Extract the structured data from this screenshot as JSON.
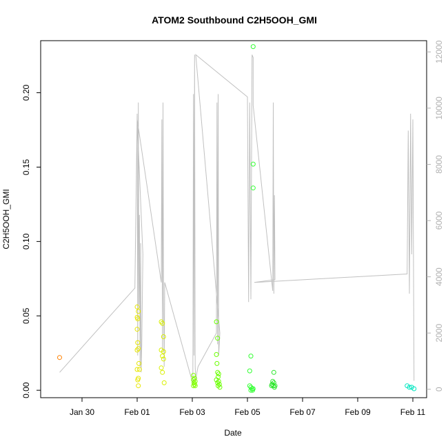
{
  "chart_data": {
    "type": "scatter",
    "title": "ATOM2 Southbound C2H5OOH_GMI",
    "xlabel": "Date",
    "ylabel": "C2H5OOH_GMI",
    "x_ticks": [
      "Jan 30",
      "Feb 01",
      "Feb 03",
      "Feb 05",
      "Feb 07",
      "Feb 09",
      "Feb 11"
    ],
    "xlim": [
      "2017-01-28T12:00",
      "2017-02-11T12:00"
    ],
    "ylim": [
      -0.005,
      0.235
    ],
    "y_ticks": [
      0.0,
      0.05,
      0.1,
      0.15,
      0.2
    ],
    "y_tick_labels": [
      "0.00",
      "0.05",
      "0.10",
      "0.15",
      "0.20"
    ],
    "y2lim": [
      -300,
      12400
    ],
    "y2_ticks": [
      0,
      2000,
      4000,
      6000,
      8000,
      10000,
      12000
    ],
    "y2_tick_labels": [
      "0",
      "2000",
      "4000",
      "6000",
      "8000",
      "10000",
      "12000"
    ],
    "grid": false,
    "points": [
      {
        "x": "2017-01-29T04:30",
        "y": 0.022,
        "color": "#ff8000"
      },
      {
        "x": "2017-02-01T00:00",
        "y": 0.056,
        "color": "#e6e600"
      },
      {
        "x": "2017-02-01T01:00",
        "y": 0.053,
        "color": "#e6e600"
      },
      {
        "x": "2017-02-01T00:00",
        "y": 0.049,
        "color": "#e6e600"
      },
      {
        "x": "2017-02-01T00:30",
        "y": 0.048,
        "color": "#e6e600"
      },
      {
        "x": "2017-02-01T00:00",
        "y": 0.041,
        "color": "#e6e600"
      },
      {
        "x": "2017-02-01T00:30",
        "y": 0.032,
        "color": "#e6e600"
      },
      {
        "x": "2017-02-01T01:00",
        "y": 0.028,
        "color": "#e6e600"
      },
      {
        "x": "2017-02-01T00:00",
        "y": 0.027,
        "color": "#e6e600"
      },
      {
        "x": "2017-02-01T01:30",
        "y": 0.018,
        "color": "#e6e600"
      },
      {
        "x": "2017-02-01T00:00",
        "y": 0.014,
        "color": "#e6e600"
      },
      {
        "x": "2017-02-01T02:00",
        "y": 0.014,
        "color": "#e6e600"
      },
      {
        "x": "2017-02-01T01:00",
        "y": 0.008,
        "color": "#e6e600"
      },
      {
        "x": "2017-02-01T00:30",
        "y": 0.007,
        "color": "#e6e600"
      },
      {
        "x": "2017-02-01T01:00",
        "y": 0.003,
        "color": "#e6e600"
      },
      {
        "x": "2017-02-01T21:00",
        "y": 0.046,
        "color": "#d9f000"
      },
      {
        "x": "2017-02-01T22:00",
        "y": 0.045,
        "color": "#d9f000"
      },
      {
        "x": "2017-02-01T21:00",
        "y": 0.027,
        "color": "#d9f000"
      },
      {
        "x": "2017-02-01T23:00",
        "y": 0.026,
        "color": "#d9f000"
      },
      {
        "x": "2017-02-01T22:00",
        "y": 0.023,
        "color": "#d9f000"
      },
      {
        "x": "2017-02-01T23:00",
        "y": 0.021,
        "color": "#d9f000"
      },
      {
        "x": "2017-02-01T21:00",
        "y": 0.015,
        "color": "#d9f000"
      },
      {
        "x": "2017-02-01T22:00",
        "y": 0.012,
        "color": "#d9f000"
      },
      {
        "x": "2017-02-01T23:30",
        "y": 0.005,
        "color": "#d9f000"
      },
      {
        "x": "2017-02-01T23:00",
        "y": 0.036,
        "color": "#d9f000"
      },
      {
        "x": "2017-02-03T01:00",
        "y": 0.01,
        "color": "#80ff00"
      },
      {
        "x": "2017-02-03T02:00",
        "y": 0.008,
        "color": "#80ff00"
      },
      {
        "x": "2017-02-03T01:00",
        "y": 0.007,
        "color": "#80ff00"
      },
      {
        "x": "2017-02-03T02:30",
        "y": 0.006,
        "color": "#80ff00"
      },
      {
        "x": "2017-02-03T01:30",
        "y": 0.005,
        "color": "#80ff00"
      },
      {
        "x": "2017-02-03T02:00",
        "y": 0.004,
        "color": "#80ff00"
      },
      {
        "x": "2017-02-03T01:00",
        "y": 0.003,
        "color": "#80ff00"
      },
      {
        "x": "2017-02-03T02:30",
        "y": 0.003,
        "color": "#80ff00"
      },
      {
        "x": "2017-02-03T21:00",
        "y": 0.046,
        "color": "#6aff00"
      },
      {
        "x": "2017-02-03T22:00",
        "y": 0.035,
        "color": "#6aff00"
      },
      {
        "x": "2017-02-03T21:00",
        "y": 0.024,
        "color": "#6aff00"
      },
      {
        "x": "2017-02-03T21:30",
        "y": 0.018,
        "color": "#6aff00"
      },
      {
        "x": "2017-02-03T22:00",
        "y": 0.012,
        "color": "#6aff00"
      },
      {
        "x": "2017-02-03T23:00",
        "y": 0.011,
        "color": "#6aff00"
      },
      {
        "x": "2017-02-03T22:30",
        "y": 0.009,
        "color": "#6aff00"
      },
      {
        "x": "2017-02-03T21:00",
        "y": 0.007,
        "color": "#6aff00"
      },
      {
        "x": "2017-02-03T23:00",
        "y": 0.006,
        "color": "#6aff00"
      },
      {
        "x": "2017-02-03T22:00",
        "y": 0.005,
        "color": "#6aff00"
      },
      {
        "x": "2017-02-03T23:30",
        "y": 0.004,
        "color": "#6aff00"
      },
      {
        "x": "2017-02-03T22:30",
        "y": 0.003,
        "color": "#6aff00"
      },
      {
        "x": "2017-02-04T00:00",
        "y": 0.002,
        "color": "#6aff00"
      },
      {
        "x": "2017-02-05T05:00",
        "y": 0.231,
        "color": "#33ff33"
      },
      {
        "x": "2017-02-05T05:00",
        "y": 0.152,
        "color": "#33ff33"
      },
      {
        "x": "2017-02-05T05:00",
        "y": 0.136,
        "color": "#33ff33"
      },
      {
        "x": "2017-02-05T03:00",
        "y": 0.023,
        "color": "#33ff33"
      },
      {
        "x": "2017-02-05T02:00",
        "y": 0.013,
        "color": "#33ff33"
      },
      {
        "x": "2017-02-05T02:00",
        "y": 0.003,
        "color": "#33ff33"
      },
      {
        "x": "2017-02-05T03:00",
        "y": 0.002,
        "color": "#33ff33"
      },
      {
        "x": "2017-02-05T04:00",
        "y": 0.001,
        "color": "#33ff33"
      },
      {
        "x": "2017-02-05T05:00",
        "y": 0.001,
        "color": "#33ff33"
      },
      {
        "x": "2017-02-05T03:00",
        "y": 0.0,
        "color": "#33ff33"
      },
      {
        "x": "2017-02-05T04:30",
        "y": 0.0,
        "color": "#33ff33"
      },
      {
        "x": "2017-02-05T23:00",
        "y": 0.012,
        "color": "#2ae62a"
      },
      {
        "x": "2017-02-05T22:00",
        "y": 0.006,
        "color": "#2ae62a"
      },
      {
        "x": "2017-02-05T23:00",
        "y": 0.005,
        "color": "#2ae62a"
      },
      {
        "x": "2017-02-05T21:30",
        "y": 0.004,
        "color": "#2ae62a"
      },
      {
        "x": "2017-02-05T22:30",
        "y": 0.003,
        "color": "#2ae62a"
      },
      {
        "x": "2017-02-06T00:00",
        "y": 0.003,
        "color": "#2ae62a"
      },
      {
        "x": "2017-02-05T21:00",
        "y": 0.003,
        "color": "#2ae62a"
      },
      {
        "x": "2017-02-05T23:30",
        "y": 0.002,
        "color": "#2ae62a"
      },
      {
        "x": "2017-02-10T19:00",
        "y": 0.003,
        "color": "#00e6c0"
      },
      {
        "x": "2017-02-10T21:00",
        "y": 0.002,
        "color": "#00e6c0"
      },
      {
        "x": "2017-02-10T23:00",
        "y": 0.002,
        "color": "#00e6c0"
      },
      {
        "x": "2017-02-11T01:00",
        "y": 0.001,
        "color": "#00e6c0"
      }
    ],
    "altitude_series": {
      "color": "#c0c0c0",
      "x": [
        "2017-01-29T04:30",
        "2017-01-31T22:00",
        "2017-02-01T00:00",
        "2017-02-01T00:30",
        "2017-02-01T01:00",
        "2017-02-01T01:30",
        "2017-02-01T02:00",
        "2017-02-01T02:30",
        "2017-02-01T03:00",
        "2017-02-01T03:30",
        "2017-02-01T04:00",
        "2017-02-01T05:00",
        "2017-02-01T00:00",
        "2017-02-01T21:00",
        "2017-02-01T21:30",
        "2017-02-01T22:00",
        "2017-02-01T22:30",
        "2017-02-01T23:00",
        "2017-02-01T23:30",
        "2017-02-02T00:00",
        "2017-02-03T00:30",
        "2017-02-03T01:00",
        "2017-02-03T01:30",
        "2017-02-03T02:00",
        "2017-02-03T02:30",
        "2017-02-03T03:00",
        "2017-02-03T04:00",
        "2017-02-03T05:00",
        "2017-02-03T21:00",
        "2017-02-03T21:30",
        "2017-02-03T22:00",
        "2017-02-03T22:30",
        "2017-02-03T23:00",
        "2017-02-04T00:00",
        "2017-02-03T03:00",
        "2017-02-05T00:00",
        "2017-02-05T01:00",
        "2017-02-05T02:00",
        "2017-02-05T03:00",
        "2017-02-05T04:00",
        "2017-02-05T05:00",
        "2017-02-05T05:00",
        "2017-02-05T22:00",
        "2017-02-05T22:30",
        "2017-02-05T23:00",
        "2017-02-05T23:30",
        "2017-02-06T00:00",
        "2017-02-05T06:00",
        "2017-02-10T19:00",
        "2017-02-10T20:00",
        "2017-02-10T21:00",
        "2017-02-10T22:00",
        "2017-02-10T23:00",
        "2017-02-11T00:00",
        "2017-02-11T01:00"
      ],
      "y": [
        600,
        3600,
        9800,
        1200,
        10200,
        3000,
        6200,
        800,
        5200,
        600,
        1600,
        4800,
        9600,
        3800,
        9600,
        1400,
        10200,
        3200,
        800,
        3800,
        200,
        10500,
        1200,
        11900,
        800,
        300,
        600,
        800,
        2000,
        10200,
        1600,
        10500,
        1200,
        2000,
        11900,
        10400,
        3100,
        10200,
        3200,
        11900,
        11800,
        10100,
        3500,
        10200,
        3400,
        6900,
        3900,
        3800,
        4100,
        9200,
        3400,
        9800,
        4800,
        9600,
        300
      ]
    }
  }
}
